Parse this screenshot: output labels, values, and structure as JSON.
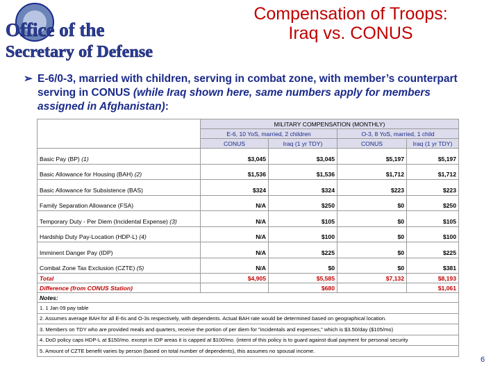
{
  "logo": {
    "line1": "Office of the",
    "line2": "Secretary of Defense"
  },
  "title": {
    "line1": "Compensation of Troops:",
    "line2": "Iraq vs. CONUS"
  },
  "bullet": {
    "text": "E-6/0-3, married with children, serving in combat zone, with member’s counterpart serving in CONUS ",
    "italic": "(while Iraq shown here, same numbers apply for members assigned in Afghanistan)",
    "end": ":"
  },
  "table": {
    "caption": "MILITARY COMPENSATION (MONTHLY)",
    "groups": [
      "E-6, 10 YoS, married, 2 children",
      "O-3, 8 YoS, married, 1 child"
    ],
    "columns": [
      "CONUS",
      "Iraq (1 yr TDY)",
      "CONUS",
      "Iraq (1 yr TDY)"
    ],
    "rows": [
      {
        "label": "Basic Pay (BP)",
        "note": "(1)",
        "values": [
          "$3,045",
          "$3,045",
          "$5,197",
          "$5,197"
        ]
      },
      {
        "label": "Basic Allowance for Housing (BAH)",
        "note": "(2)",
        "values": [
          "$1,536",
          "$1,536",
          "$1,712",
          "$1,712"
        ]
      },
      {
        "label": "Basic Allowance for Subsistence (BAS)",
        "values": [
          "$324",
          "$324",
          "$223",
          "$223"
        ]
      },
      {
        "label": "Family Separation Allowance (FSA)",
        "values": [
          "N/A",
          "$250",
          "$0",
          "$250"
        ]
      },
      {
        "label": "Temporary Duty - Per Diem (Incidental Expense)",
        "note": "(3)",
        "values": [
          "N/A",
          "$105",
          "$0",
          "$105"
        ]
      },
      {
        "label": "Hardship Duty Pay-Location (HDP-L)",
        "note": "(4)",
        "values": [
          "N/A",
          "$100",
          "$0",
          "$100"
        ]
      },
      {
        "label": "Imminent Danger Pay (IDP)",
        "values": [
          "N/A",
          "$225",
          "$0",
          "$225"
        ]
      },
      {
        "label": "Combat Zone Tax Exclusion (CZTE)",
        "note": "(5)",
        "values": [
          "N/A",
          "$0",
          "$0",
          "$381"
        ]
      }
    ],
    "total": {
      "label": "Total",
      "values": [
        "$4,905",
        "$5,585",
        "$7,132",
        "$8,193"
      ]
    },
    "difference": {
      "label": "Difference (from CONUS Station)",
      "values": [
        null,
        "$680",
        null,
        "$1,061"
      ]
    },
    "notes_title": "Notes:",
    "notes": [
      "1. 1 Jan 09 pay table",
      "2. Assumes average BAH for all E-6s and O-3s respectively, with dependents. Actual BAH rate would be determined based on geographical location.",
      "3. Members on TDY who are provided meals and quarters, receive the portion of per diem for \"incidentals and expenses,\" which is $3.50/day ($105/mo)",
      "4. DoD policy caps HDP-L at $150/mo. except in IDP areas it is capped at $100/mo. (intent of this policy is to guard against dual payment for personal security",
      "5. Amount of CZTE benefit varies by person (based on total number of dependents), this assumes no spousal income."
    ]
  },
  "page_number": "6"
}
